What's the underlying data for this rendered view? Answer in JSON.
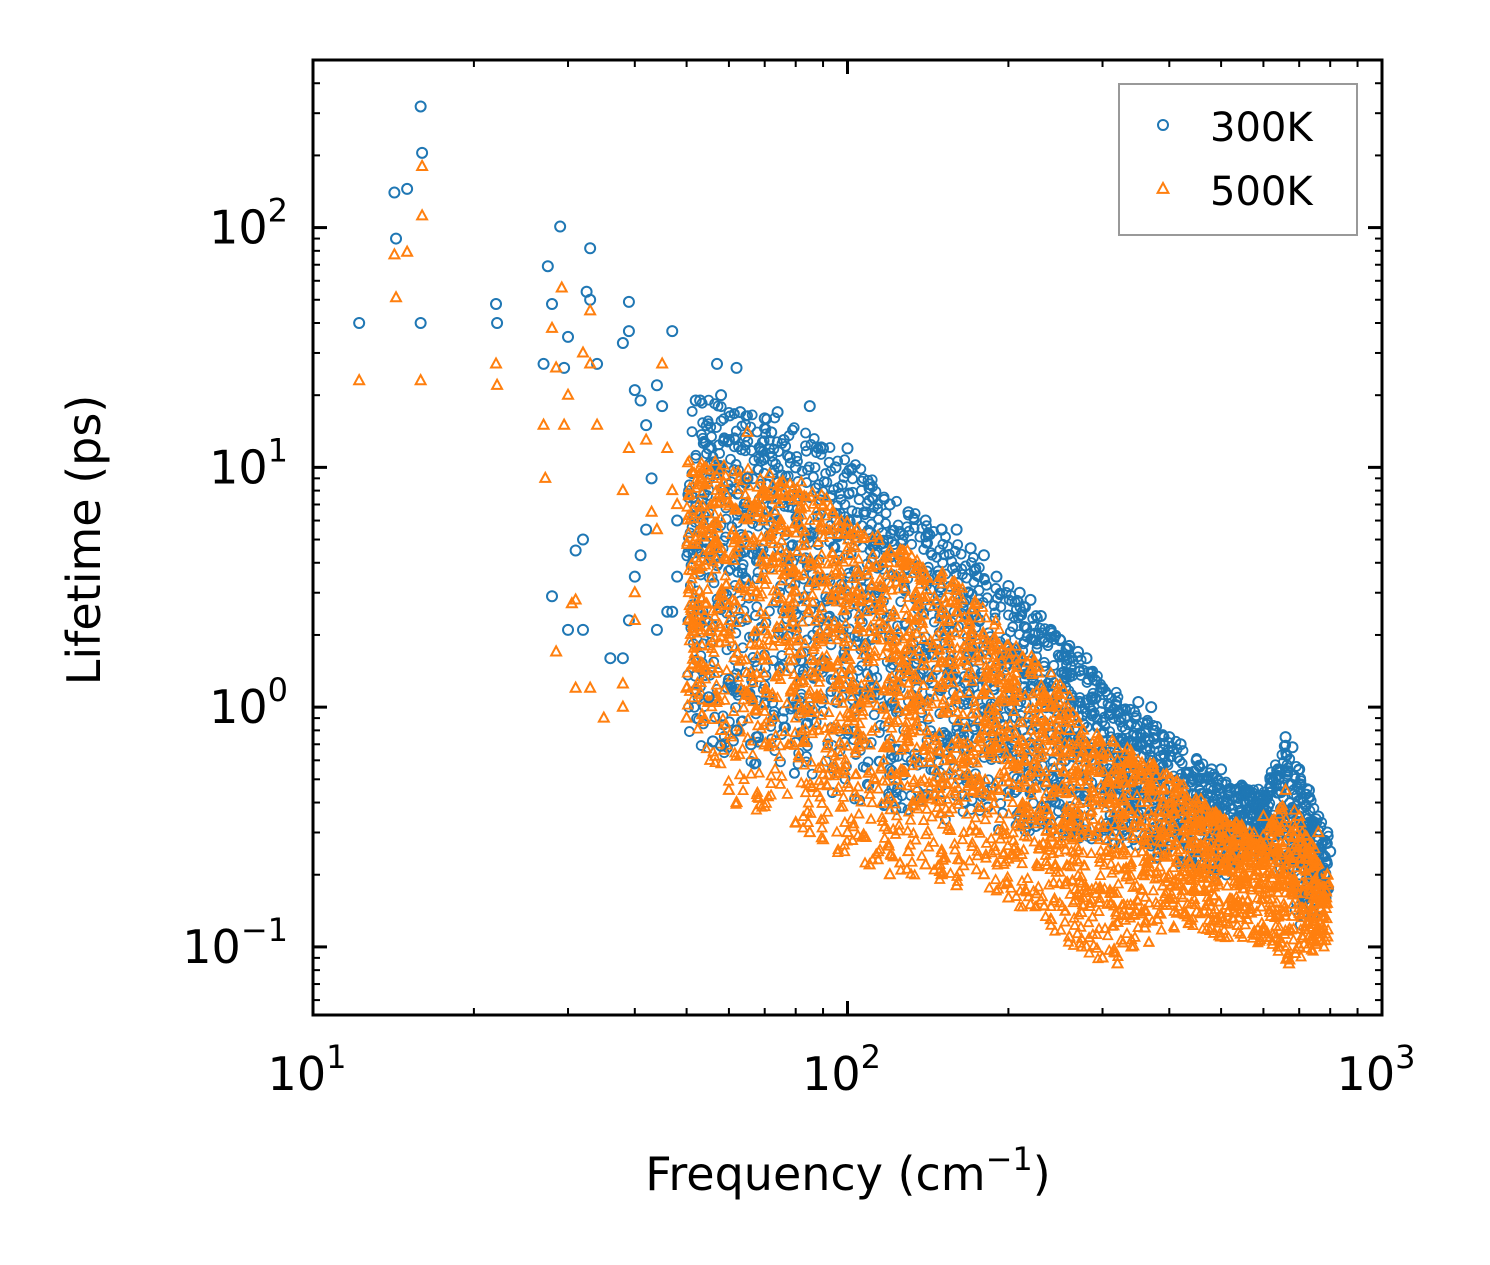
{
  "chart_data": {
    "type": "scatter",
    "xscale": "log",
    "yscale": "log",
    "xlim": [
      10,
      1000
    ],
    "ylim": [
      0.052,
      500
    ],
    "xlabel": {
      "main": "Frequency (cm",
      "exponent": "−1",
      "suffix": ")"
    },
    "ylabel": "Lifetime (ps)",
    "x_ticks": [
      {
        "base": "10",
        "exp": "1",
        "value": 10
      },
      {
        "base": "10",
        "exp": "2",
        "value": 100
      },
      {
        "base": "10",
        "exp": "3",
        "value": 1000
      }
    ],
    "y_ticks": [
      {
        "base": "10",
        "exp": "−1",
        "value": 0.1
      },
      {
        "base": "10",
        "exp": "0",
        "value": 1
      },
      {
        "base": "10",
        "exp": "1",
        "value": 10
      },
      {
        "base": "10",
        "exp": "2",
        "value": 100
      }
    ],
    "legend": {
      "position": "top-right"
    },
    "series": [
      {
        "name": "300K",
        "marker": "circle",
        "color": "#1f77b4",
        "points": [
          [
            12.2,
            40
          ],
          [
            14.2,
            140
          ],
          [
            14.3,
            90
          ],
          [
            15.0,
            145
          ],
          [
            15.9,
            320
          ],
          [
            16.0,
            205
          ],
          [
            15.9,
            40
          ],
          [
            22,
            48
          ],
          [
            22.1,
            40
          ],
          [
            27,
            27
          ],
          [
            27.5,
            69
          ],
          [
            28,
            48
          ],
          [
            29,
            101
          ],
          [
            29.5,
            26
          ],
          [
            30,
            35
          ],
          [
            31,
            4.5
          ],
          [
            32,
            5
          ],
          [
            32.5,
            54
          ],
          [
            33,
            50
          ],
          [
            33,
            82
          ],
          [
            34,
            27
          ],
          [
            36,
            1.6
          ],
          [
            38,
            33
          ],
          [
            39,
            37
          ],
          [
            39,
            49
          ],
          [
            40,
            21
          ],
          [
            41,
            19
          ],
          [
            42,
            15
          ],
          [
            43,
            9
          ],
          [
            44,
            22
          ],
          [
            45,
            18
          ],
          [
            47,
            37
          ],
          [
            48,
            3.5
          ],
          [
            48,
            6
          ],
          [
            42,
            5.5
          ],
          [
            41,
            4.3
          ],
          [
            40,
            3.5
          ],
          [
            39,
            2.3
          ],
          [
            38,
            1.6
          ],
          [
            28,
            2.9
          ],
          [
            30,
            2.1
          ],
          [
            32,
            2.1
          ],
          [
            44,
            2.1
          ],
          [
            46,
            2.5
          ],
          [
            47,
            2.5
          ],
          [
            52,
            19
          ],
          [
            53,
            19
          ],
          [
            55,
            12
          ],
          [
            57,
            27
          ],
          [
            58,
            20
          ],
          [
            60,
            13
          ],
          [
            62,
            26
          ],
          [
            63,
            17
          ],
          [
            65,
            9
          ],
          [
            55,
            1.1
          ],
          [
            56,
            0.72
          ],
          [
            58,
            0.69
          ],
          [
            60,
            1.3
          ],
          [
            62,
            0.8
          ],
          [
            66,
            0.7
          ],
          [
            68,
            0.75
          ],
          [
            70,
            16
          ],
          [
            72,
            14
          ],
          [
            74,
            17
          ],
          [
            76,
            13
          ],
          [
            78,
            11
          ],
          [
            80,
            10
          ],
          [
            85,
            18
          ],
          [
            90,
            12
          ],
          [
            95,
            10
          ],
          [
            100,
            12
          ],
          [
            110,
            8.5
          ],
          [
            120,
            7
          ],
          [
            130,
            6.5
          ],
          [
            140,
            6
          ],
          [
            150,
            5.5
          ],
          [
            160,
            5.5
          ],
          [
            170,
            4.6
          ],
          [
            180,
            4.3
          ],
          [
            190,
            3.5
          ],
          [
            200,
            3.2
          ],
          [
            210,
            3
          ],
          [
            220,
            2.8
          ],
          [
            230,
            2.4
          ],
          [
            240,
            2.1
          ],
          [
            250,
            1.9
          ],
          [
            260,
            1.8
          ],
          [
            270,
            1.7
          ],
          [
            280,
            1.6
          ],
          [
            290,
            1.3
          ],
          [
            300,
            1.2
          ],
          [
            310,
            1
          ],
          [
            330,
            0.9
          ],
          [
            350,
            1.05
          ],
          [
            370,
            1.0
          ],
          [
            400,
            0.75
          ],
          [
            420,
            0.7
          ],
          [
            450,
            0.6
          ],
          [
            480,
            0.55
          ],
          [
            500,
            0.55
          ],
          [
            520,
            0.45
          ],
          [
            560,
            0.45
          ],
          [
            600,
            0.42
          ],
          [
            640,
            0.5
          ],
          [
            660,
            0.75
          ],
          [
            680,
            0.68
          ],
          [
            700,
            0.55
          ],
          [
            730,
            0.45
          ],
          [
            760,
            0.35
          ],
          [
            790,
            0.3
          ],
          [
            800,
            0.25
          ],
          [
            780,
            0.2
          ]
        ]
      },
      {
        "name": "500K",
        "marker": "triangle",
        "color": "#ff7f0e",
        "points": [
          [
            12.2,
            23
          ],
          [
            14.2,
            77
          ],
          [
            14.3,
            51
          ],
          [
            15.0,
            79
          ],
          [
            16.0,
            180
          ],
          [
            16.0,
            112
          ],
          [
            15.9,
            23
          ],
          [
            22,
            27
          ],
          [
            22.1,
            22
          ],
          [
            27,
            15
          ],
          [
            27.2,
            9
          ],
          [
            28,
            38
          ],
          [
            28.5,
            26
          ],
          [
            29.2,
            56
          ],
          [
            29.5,
            15
          ],
          [
            30,
            20
          ],
          [
            30.5,
            2.7
          ],
          [
            31,
            2.8
          ],
          [
            32,
            30
          ],
          [
            33,
            27
          ],
          [
            33,
            45
          ],
          [
            34,
            15
          ],
          [
            28.5,
            1.7
          ],
          [
            31,
            1.2
          ],
          [
            33,
            1.2
          ],
          [
            35,
            0.9
          ],
          [
            38,
            1.25
          ],
          [
            38,
            1.0
          ],
          [
            38,
            8
          ],
          [
            39,
            12
          ],
          [
            40,
            3
          ],
          [
            40,
            2.3
          ],
          [
            42,
            13
          ],
          [
            43,
            6.5
          ],
          [
            44,
            5.5
          ],
          [
            45,
            27
          ],
          [
            46,
            12
          ],
          [
            47,
            8
          ],
          [
            48,
            7
          ],
          [
            50,
            0.9
          ],
          [
            50,
            1.2
          ],
          [
            52,
            5
          ],
          [
            53,
            10
          ],
          [
            55,
            4.5
          ],
          [
            58,
            0.8
          ],
          [
            60,
            0.45
          ],
          [
            62,
            0.4
          ],
          [
            65,
            14
          ],
          [
            68,
            7
          ],
          [
            70,
            6.5
          ],
          [
            72,
            5
          ],
          [
            75,
            4.5
          ],
          [
            80,
            0.33
          ],
          [
            85,
            0.3
          ],
          [
            90,
            0.28
          ],
          [
            100,
            0.3
          ],
          [
            110,
            0.22
          ],
          [
            120,
            0.2
          ],
          [
            130,
            0.25
          ],
          [
            140,
            0.22
          ],
          [
            150,
            0.2
          ],
          [
            160,
            0.18
          ],
          [
            180,
            0.2
          ],
          [
            200,
            0.16
          ],
          [
            220,
            0.15
          ],
          [
            240,
            0.13
          ],
          [
            260,
            0.11
          ],
          [
            280,
            0.1
          ],
          [
            300,
            0.09
          ],
          [
            320,
            0.085
          ],
          [
            340,
            0.1
          ],
          [
            360,
            0.12
          ],
          [
            380,
            0.13
          ],
          [
            400,
            0.2
          ],
          [
            420,
            0.18
          ],
          [
            450,
            0.14
          ],
          [
            480,
            0.12
          ],
          [
            500,
            0.11
          ],
          [
            530,
            0.15
          ],
          [
            560,
            0.13
          ],
          [
            600,
            0.12
          ],
          [
            640,
            0.1
          ],
          [
            670,
            0.085
          ],
          [
            700,
            0.1
          ],
          [
            730,
            0.11
          ],
          [
            760,
            0.12
          ],
          [
            790,
            0.11
          ],
          [
            100,
            5.5
          ],
          [
            120,
            4.5
          ],
          [
            140,
            3.5
          ],
          [
            160,
            2.5
          ],
          [
            180,
            2
          ],
          [
            200,
            1.8
          ],
          [
            220,
            1.4
          ],
          [
            240,
            1.0
          ],
          [
            260,
            0.8
          ],
          [
            280,
            0.7
          ],
          [
            300,
            0.65
          ],
          [
            320,
            0.6
          ],
          [
            350,
            0.55
          ],
          [
            400,
            0.5
          ],
          [
            450,
            0.4
          ],
          [
            500,
            0.3
          ],
          [
            600,
            0.35
          ],
          [
            660,
            0.45
          ],
          [
            700,
            0.35
          ],
          [
            760,
            0.3
          ],
          [
            790,
            0.2
          ]
        ]
      }
    ]
  }
}
